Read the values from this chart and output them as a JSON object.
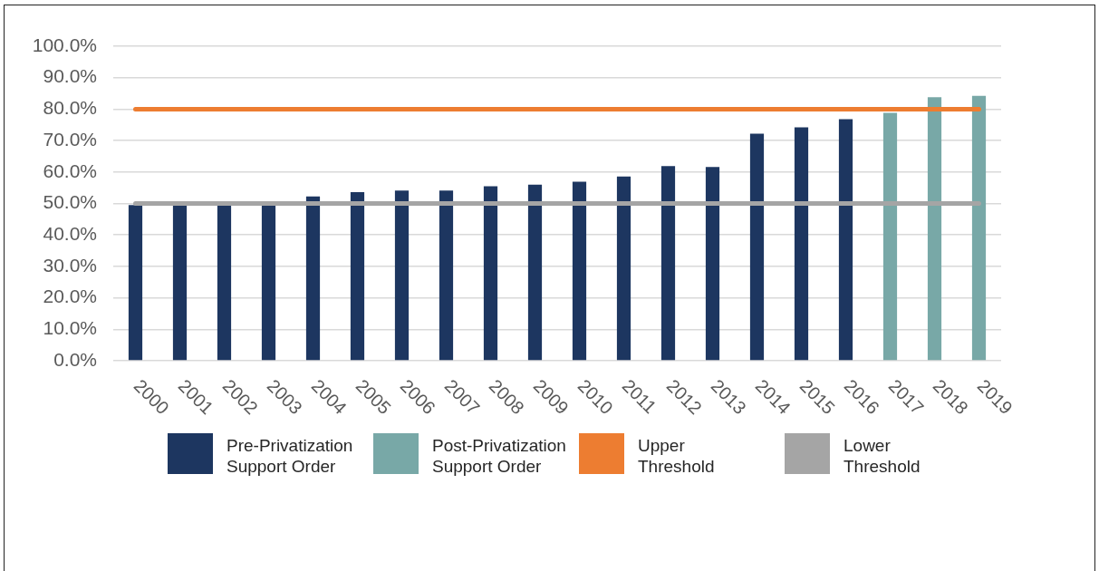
{
  "chart_data": {
    "type": "bar",
    "categories": [
      "2000",
      "2001",
      "2002",
      "2003",
      "2004",
      "2005",
      "2006",
      "2007",
      "2008",
      "2009",
      "2010",
      "2011",
      "2012",
      "2013",
      "2014",
      "2015",
      "2016",
      "2017",
      "2018",
      "2019"
    ],
    "series": [
      {
        "name": "Pre-Privatization Support Order",
        "color": "#1d3660",
        "values": [
          49.5,
          49.5,
          49.5,
          49.5,
          52.2,
          53.6,
          54.1,
          54.1,
          55.5,
          56.0,
          56.9,
          58.6,
          61.9,
          61.6,
          72.2,
          74.2,
          76.8,
          null,
          null,
          null
        ]
      },
      {
        "name": "Post-Privatization Support Order",
        "color": "#78a8a7",
        "values": [
          null,
          null,
          null,
          null,
          null,
          null,
          null,
          null,
          null,
          null,
          null,
          null,
          null,
          null,
          null,
          null,
          null,
          78.8,
          83.8,
          84.2
        ]
      }
    ],
    "ylim": [
      0,
      100
    ],
    "yticks": [
      {
        "value": 0,
        "label": "0.0%"
      },
      {
        "value": 10,
        "label": "10.0%"
      },
      {
        "value": 20,
        "label": "20.0%"
      },
      {
        "value": 30,
        "label": "30.0%"
      },
      {
        "value": 40,
        "label": "40.0%"
      },
      {
        "value": 50,
        "label": "50.0%"
      },
      {
        "value": 60,
        "label": "60.0%"
      },
      {
        "value": 70,
        "label": "70.0%"
      },
      {
        "value": 80,
        "label": "80.0%"
      },
      {
        "value": 90,
        "label": "90.0%"
      },
      {
        "value": 100,
        "label": "100.0%"
      }
    ],
    "ref_lines": [
      {
        "axis": "y",
        "value": 80,
        "label": "Upper Threshold",
        "color": "#ed7d31"
      },
      {
        "axis": "y",
        "value": 50,
        "label": "Lower Threshold",
        "color": "#a5a5a5"
      }
    ],
    "grid": "y",
    "legend": "bottom"
  }
}
